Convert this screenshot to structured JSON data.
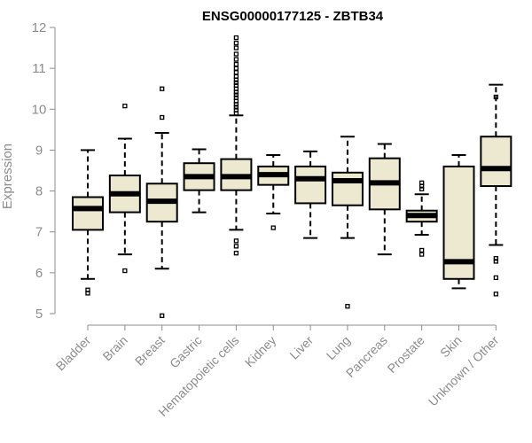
{
  "chart_data": {
    "type": "boxplot",
    "title": "ENSG00000177125 - ZBTB34",
    "xlabel": "",
    "ylabel": "Expression",
    "ylim": [
      5,
      12
    ],
    "yticks": [
      5,
      6,
      7,
      8,
      9,
      10,
      11,
      12
    ],
    "box_color": "#ede8d0",
    "categories": [
      "Bladder",
      "Brain",
      "Breast",
      "Gastric",
      "Hematopoietic cells",
      "Kidney",
      "Liver",
      "Lung",
      "Pancreas",
      "Prostate",
      "Skin",
      "Unknown / Other"
    ],
    "series": [
      {
        "name": "Bladder",
        "whisker_low": 5.85,
        "q1": 7.05,
        "median": 7.57,
        "q3": 7.85,
        "whisker_high": 9.0,
        "outliers": [
          5.5,
          5.58
        ]
      },
      {
        "name": "Brain",
        "whisker_low": 6.45,
        "q1": 7.48,
        "median": 7.93,
        "q3": 8.38,
        "whisker_high": 9.28,
        "outliers": [
          6.05,
          10.08
        ]
      },
      {
        "name": "Breast",
        "whisker_low": 6.1,
        "q1": 7.25,
        "median": 7.75,
        "q3": 8.18,
        "whisker_high": 9.42,
        "outliers": [
          4.95,
          9.8,
          10.5
        ]
      },
      {
        "name": "Gastric",
        "whisker_low": 7.48,
        "q1": 8.02,
        "median": 8.35,
        "q3": 8.68,
        "whisker_high": 9.02,
        "outliers": []
      },
      {
        "name": "Hematopoietic cells",
        "whisker_low": 7.05,
        "q1": 8.02,
        "median": 8.35,
        "q3": 8.78,
        "whisker_high": 9.85,
        "outliers": [
          6.48,
          6.65,
          6.78,
          9.9,
          9.98,
          10.05,
          10.12,
          10.2,
          10.28,
          10.35,
          10.42,
          10.5,
          10.58,
          10.65,
          10.72,
          10.8,
          10.9,
          11.0,
          11.1,
          11.22,
          11.35,
          11.5,
          11.62,
          11.75
        ]
      },
      {
        "name": "Kidney",
        "whisker_low": 7.45,
        "q1": 8.15,
        "median": 8.4,
        "q3": 8.6,
        "whisker_high": 8.88,
        "outliers": [
          7.1
        ]
      },
      {
        "name": "Liver",
        "whisker_low": 6.85,
        "q1": 7.7,
        "median": 8.3,
        "q3": 8.6,
        "whisker_high": 8.97,
        "outliers": []
      },
      {
        "name": "Lung",
        "whisker_low": 6.85,
        "q1": 7.65,
        "median": 8.25,
        "q3": 8.45,
        "whisker_high": 9.33,
        "outliers": [
          5.18
        ]
      },
      {
        "name": "Pancreas",
        "whisker_low": 6.45,
        "q1": 7.55,
        "median": 8.2,
        "q3": 8.8,
        "whisker_high": 9.15,
        "outliers": []
      },
      {
        "name": "Prostate",
        "whisker_low": 6.93,
        "q1": 7.25,
        "median": 7.4,
        "q3": 7.52,
        "whisker_high": 7.92,
        "outliers": [
          6.45,
          6.55,
          8.05,
          8.12,
          8.2
        ]
      },
      {
        "name": "Skin",
        "whisker_low": 5.62,
        "q1": 5.85,
        "median": 6.27,
        "q3": 8.6,
        "whisker_high": 8.88,
        "outliers": []
      },
      {
        "name": "Unknown / Other",
        "whisker_low": 6.68,
        "q1": 8.12,
        "median": 8.55,
        "q3": 9.33,
        "whisker_high": 10.6,
        "outliers": [
          5.48,
          5.88,
          6.28,
          6.35,
          10.3
        ]
      }
    ]
  }
}
